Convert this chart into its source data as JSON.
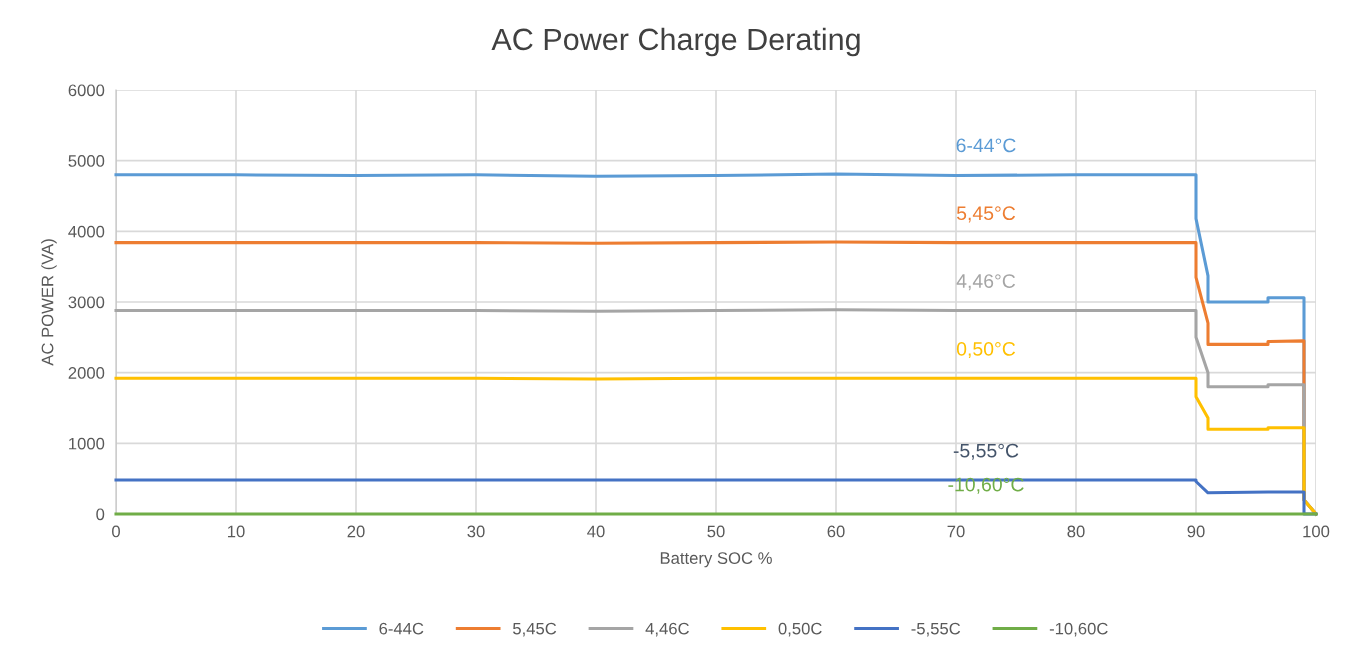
{
  "chart_data": {
    "type": "line",
    "title": "AC Power Charge Derating",
    "xlabel": "Battery SOC %",
    "ylabel": "AC POWER (VA)",
    "xlim": [
      0,
      100
    ],
    "xticks": [
      0,
      10,
      20,
      30,
      40,
      50,
      60,
      70,
      80,
      90,
      100
    ],
    "ylim": [
      0,
      6000
    ],
    "yticks": [
      0,
      1000,
      2000,
      3000,
      4000,
      5000,
      6000
    ],
    "grid": true,
    "legend": "bottom",
    "marker": "none",
    "line_style": "solid",
    "series": [
      {
        "name": "6-44C",
        "color": "#5b9bd5",
        "x": [
          0,
          10,
          20,
          30,
          40,
          50,
          60,
          70,
          80,
          90,
          90,
          91,
          91,
          96,
          96,
          99,
          99,
          100
        ],
        "values": [
          4800,
          4800,
          4790,
          4800,
          4780,
          4790,
          4810,
          4790,
          4800,
          4800,
          4180,
          3370,
          3000,
          3000,
          3060,
          3060,
          200,
          0
        ]
      },
      {
        "name": "5,45C",
        "color": "#ed7d31",
        "x": [
          0,
          10,
          20,
          30,
          40,
          50,
          60,
          70,
          80,
          90,
          90,
          91,
          91,
          96,
          96,
          99,
          99,
          100
        ],
        "values": [
          3840,
          3840,
          3840,
          3840,
          3830,
          3840,
          3850,
          3840,
          3840,
          3840,
          3350,
          2700,
          2400,
          2400,
          2440,
          2450,
          200,
          0
        ]
      },
      {
        "name": "4,46C",
        "color": "#a5a5a5",
        "x": [
          0,
          10,
          20,
          30,
          40,
          50,
          60,
          70,
          80,
          90,
          90,
          91,
          91,
          96,
          96,
          99,
          99,
          100
        ],
        "values": [
          2880,
          2880,
          2880,
          2880,
          2870,
          2880,
          2890,
          2880,
          2880,
          2880,
          2500,
          2000,
          1800,
          1800,
          1830,
          1830,
          200,
          0
        ]
      },
      {
        "name": "0,50C",
        "color": "#ffc000",
        "x": [
          0,
          10,
          20,
          30,
          40,
          50,
          60,
          70,
          80,
          90,
          90,
          91,
          91,
          96,
          96,
          99,
          99,
          100
        ],
        "values": [
          1920,
          1920,
          1920,
          1920,
          1910,
          1920,
          1920,
          1920,
          1920,
          1920,
          1660,
          1360,
          1200,
          1200,
          1220,
          1220,
          200,
          0
        ]
      },
      {
        "name": "-5,55C",
        "color": "#4472c4",
        "x": [
          0,
          10,
          20,
          30,
          40,
          50,
          60,
          70,
          80,
          90,
          90,
          91,
          96,
          99,
          99,
          100
        ],
        "values": [
          480,
          480,
          480,
          480,
          480,
          480,
          480,
          480,
          480,
          480,
          460,
          300,
          310,
          310,
          0,
          0
        ]
      },
      {
        "name": "-10,60C",
        "color": "#70ad47",
        "x": [
          0,
          100
        ],
        "values": [
          0,
          0
        ]
      }
    ],
    "annotations": [
      "6-44°C",
      "5,45°C",
      "4,46°C",
      "0,50°C",
      "-5,55°C",
      "-10,60°C"
    ]
  }
}
